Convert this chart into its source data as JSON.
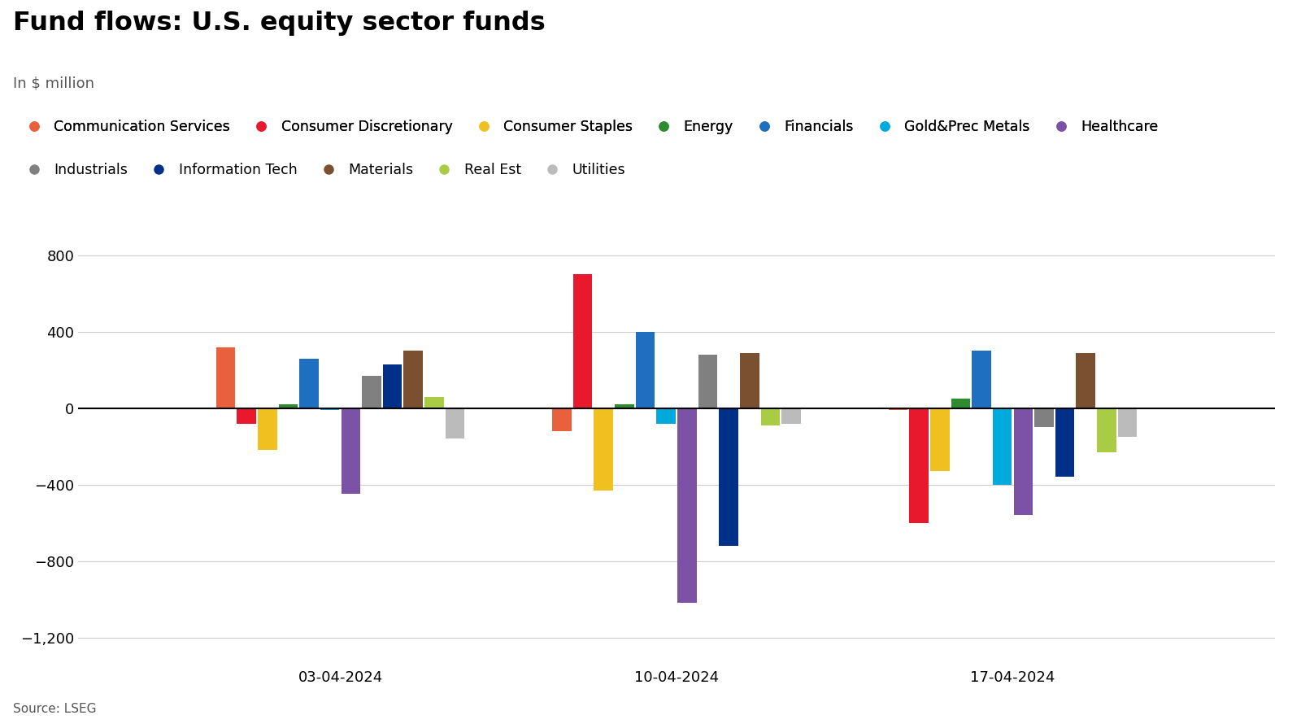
{
  "title": "Fund flows: U.S. equity sector funds",
  "subtitle": "In $ million",
  "source": "Source: LSEG",
  "dates": [
    "03-04-2024",
    "10-04-2024",
    "17-04-2024"
  ],
  "sectors": [
    "Communication Services",
    "Consumer Discretionary",
    "Consumer Staples",
    "Energy",
    "Financials",
    "Gold&Prec Metals",
    "Healthcare",
    "Industrials",
    "Information Tech",
    "Materials",
    "Real Est",
    "Utilities"
  ],
  "colors": [
    "#E8613C",
    "#E8192C",
    "#F0C020",
    "#2E8B2E",
    "#1E6FBF",
    "#00AADD",
    "#7B52A6",
    "#808080",
    "#003087",
    "#7B5030",
    "#AACC44",
    "#BBBBBB"
  ],
  "values": {
    "03-04-2024": [
      320,
      -80,
      -220,
      20,
      260,
      -10,
      -450,
      170,
      230,
      300,
      60,
      -160
    ],
    "10-04-2024": [
      -120,
      700,
      -430,
      20,
      400,
      -80,
      -1020,
      280,
      -720,
      290,
      -90,
      -80
    ],
    "17-04-2024": [
      -10,
      -600,
      -330,
      50,
      300,
      -400,
      -560,
      -100,
      -360,
      290,
      -230,
      -150
    ]
  },
  "ylim": [
    -1350,
    1000
  ],
  "yticks": [
    -1200,
    -800,
    -400,
    0,
    400,
    800
  ],
  "background_color": "#FFFFFF",
  "grid_color": "#CCCCCC",
  "bar_width": 0.062
}
